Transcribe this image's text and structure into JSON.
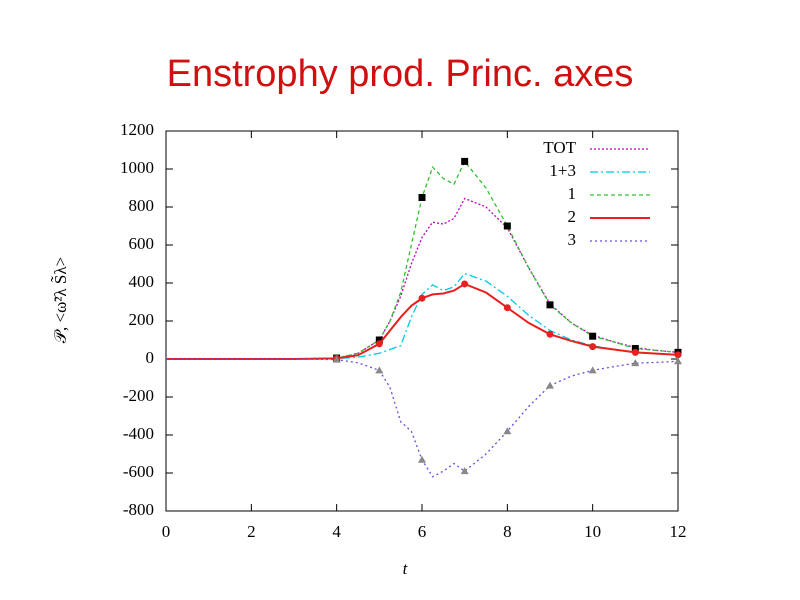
{
  "chart_data": {
    "type": "line",
    "title": "Enstrophy prod. Princ. axes",
    "xlabel": "t",
    "ylabel": "𝒫, <ω̃²λ S̃λ>",
    "x": [
      0,
      1,
      2,
      3,
      4,
      4.5,
      5,
      5.25,
      5.5,
      5.75,
      6,
      6.25,
      6.5,
      6.75,
      7,
      7.5,
      8,
      8.5,
      9,
      9.5,
      10,
      10.5,
      11,
      11.5,
      12
    ],
    "xlim": [
      0,
      12
    ],
    "xticks": [
      0,
      2,
      4,
      6,
      8,
      10,
      12
    ],
    "ylim": [
      -800,
      1200
    ],
    "yticks": [
      -800,
      -600,
      -400,
      -200,
      0,
      200,
      400,
      600,
      800,
      1000,
      1200
    ],
    "grid": false,
    "legend": "upper right",
    "series": [
      {
        "name": "TOT",
        "color": "#c000c0",
        "dash": "2,2",
        "marker": "none",
        "values": [
          0,
          0,
          0,
          0,
          5,
          30,
          100,
          200,
          330,
          500,
          640,
          720,
          710,
          740,
          845,
          800,
          690,
          480,
          290,
          190,
          125,
          90,
          60,
          45,
          35
        ]
      },
      {
        "name": "1+3",
        "color": "#00c8e8",
        "dash": "8,3,2,3",
        "marker": "none",
        "values": [
          0,
          0,
          0,
          0,
          2,
          10,
          30,
          50,
          70,
          220,
          340,
          390,
          360,
          380,
          450,
          410,
          330,
          230,
          150,
          100,
          70,
          50,
          35,
          27,
          23
        ]
      },
      {
        "name": "1",
        "color": "#30c030",
        "dash": "4,3",
        "marker": "square",
        "values": [
          0,
          0,
          0,
          0,
          5,
          30,
          100,
          200,
          350,
          600,
          850,
          1010,
          950,
          920,
          1040,
          900,
          700,
          480,
          285,
          190,
          120,
          90,
          55,
          45,
          35
        ]
      },
      {
        "name": "2",
        "color": "#e82020",
        "dash": "",
        "marker": "circle",
        "values": [
          0,
          0,
          0,
          0,
          3,
          20,
          80,
          150,
          220,
          280,
          320,
          340,
          345,
          360,
          395,
          350,
          270,
          190,
          130,
          95,
          65,
          50,
          35,
          28,
          22
        ]
      },
      {
        "name": "3",
        "color": "#6050e0",
        "dash": "2,3",
        "marker": "triangle",
        "values": [
          0,
          0,
          0,
          0,
          -3,
          -20,
          -60,
          -150,
          -330,
          -380,
          -530,
          -620,
          -590,
          -550,
          -590,
          -500,
          -380,
          -250,
          -140,
          -90,
          -60,
          -40,
          -22,
          -18,
          -12
        ]
      }
    ]
  }
}
